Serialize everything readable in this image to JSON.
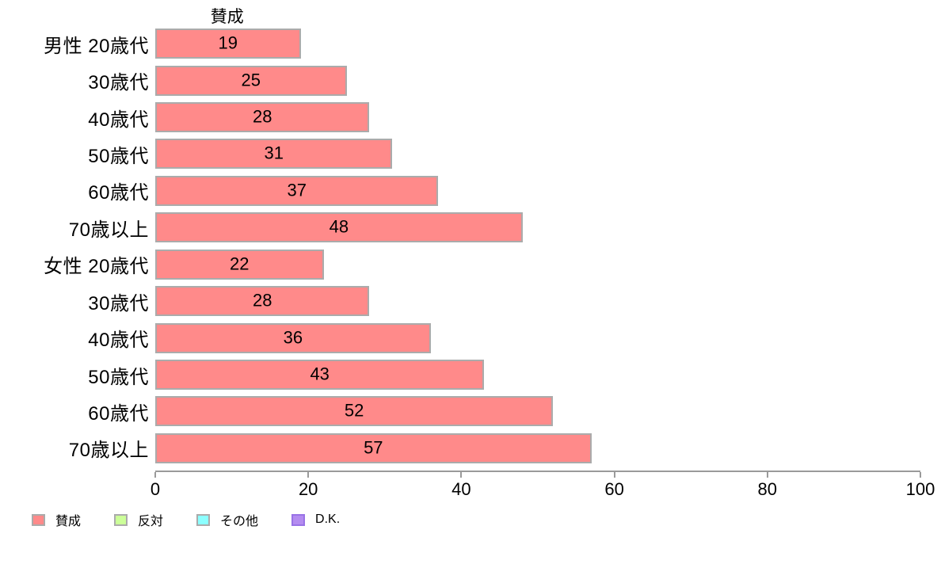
{
  "chart_data": {
    "type": "bar",
    "orientation": "horizontal",
    "title": "賛成",
    "categories": [
      "男性 20歳代",
      "30歳代",
      "40歳代",
      "50歳代",
      "60歳代",
      "70歳以上",
      "女性 20歳代",
      "30歳代",
      "40歳代",
      "50歳代",
      "60歳代",
      "70歳以上"
    ],
    "values": [
      19,
      25,
      28,
      31,
      37,
      48,
      22,
      28,
      36,
      43,
      52,
      57
    ],
    "xlabel": "",
    "ylabel": "",
    "xlim": [
      0,
      100
    ],
    "xticks": [
      0,
      20,
      40,
      60,
      80,
      100
    ],
    "grid": false,
    "value_labels": "inside-center",
    "series_color": "#ff8a8a",
    "bar_edge_color": "#ababab",
    "axis_color": "#9a9a9a",
    "legend_position": "bottom-left",
    "legend": [
      {
        "label": "賛成",
        "color": "#ff8a8a",
        "border": "#ababab"
      },
      {
        "label": "反対",
        "color": "#ccff99",
        "border": "#ababab"
      },
      {
        "label": "その他",
        "color": "#8cffff",
        "border": "#ababab"
      },
      {
        "label": "D.K.",
        "color": "#b48cf0",
        "border": "#9973e6"
      }
    ]
  }
}
